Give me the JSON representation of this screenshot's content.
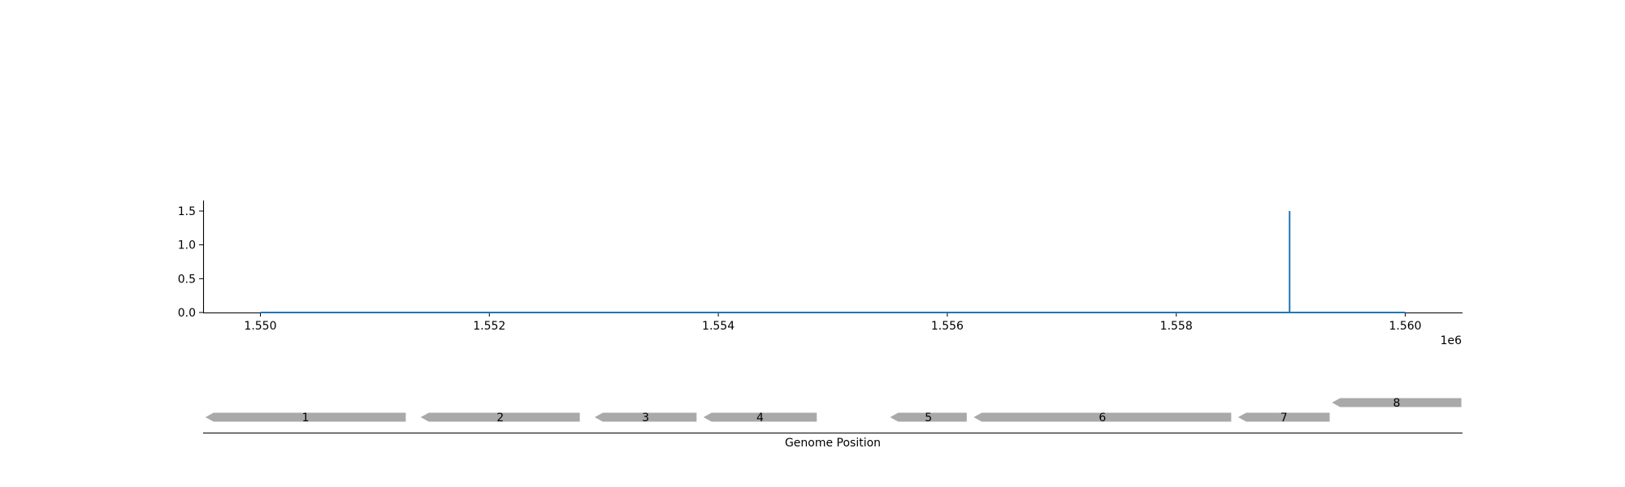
{
  "chart_data": [
    {
      "type": "line",
      "x": [
        1550000,
        1558990,
        1558990,
        1558990,
        1560000
      ],
      "y": [
        0,
        0,
        1.5,
        0,
        0
      ],
      "xlim": [
        1549500,
        1560500
      ],
      "ylim": [
        0,
        1.65
      ],
      "xticks": [
        1550000,
        1552000,
        1554000,
        1556000,
        1558000,
        1560000
      ],
      "xtick_labels": [
        "1.550",
        "1.552",
        "1.554",
        "1.556",
        "1.558",
        "1.560"
      ],
      "x_offset_label": "1e6",
      "yticks": [
        0.0,
        0.5,
        1.0,
        1.5
      ],
      "ytick_labels": [
        "0.0",
        "0.5",
        "1.0",
        "1.5"
      ],
      "line_color": "#1f77b4",
      "grid": false
    },
    {
      "type": "gene_track",
      "xlabel": "Genome Position",
      "feature_color": "#a9a9a9",
      "genes": [
        {
          "label": "1",
          "start": 1549520,
          "end": 1551270,
          "strand": "-",
          "row": 0
        },
        {
          "label": "2",
          "start": 1551400,
          "end": 1552790,
          "strand": "-",
          "row": 0
        },
        {
          "label": "3",
          "start": 1552920,
          "end": 1553810,
          "strand": "-",
          "row": 0
        },
        {
          "label": "4",
          "start": 1553870,
          "end": 1554860,
          "strand": "-",
          "row": 0
        },
        {
          "label": "5",
          "start": 1555500,
          "end": 1556170,
          "strand": "-",
          "row": 0
        },
        {
          "label": "6",
          "start": 1556230,
          "end": 1558480,
          "strand": "-",
          "row": 0
        },
        {
          "label": "7",
          "start": 1558540,
          "end": 1559340,
          "strand": "-",
          "row": 0
        },
        {
          "label": "8",
          "start": 1559360,
          "end": 1560490,
          "strand": "-",
          "row": 1
        }
      ]
    }
  ]
}
